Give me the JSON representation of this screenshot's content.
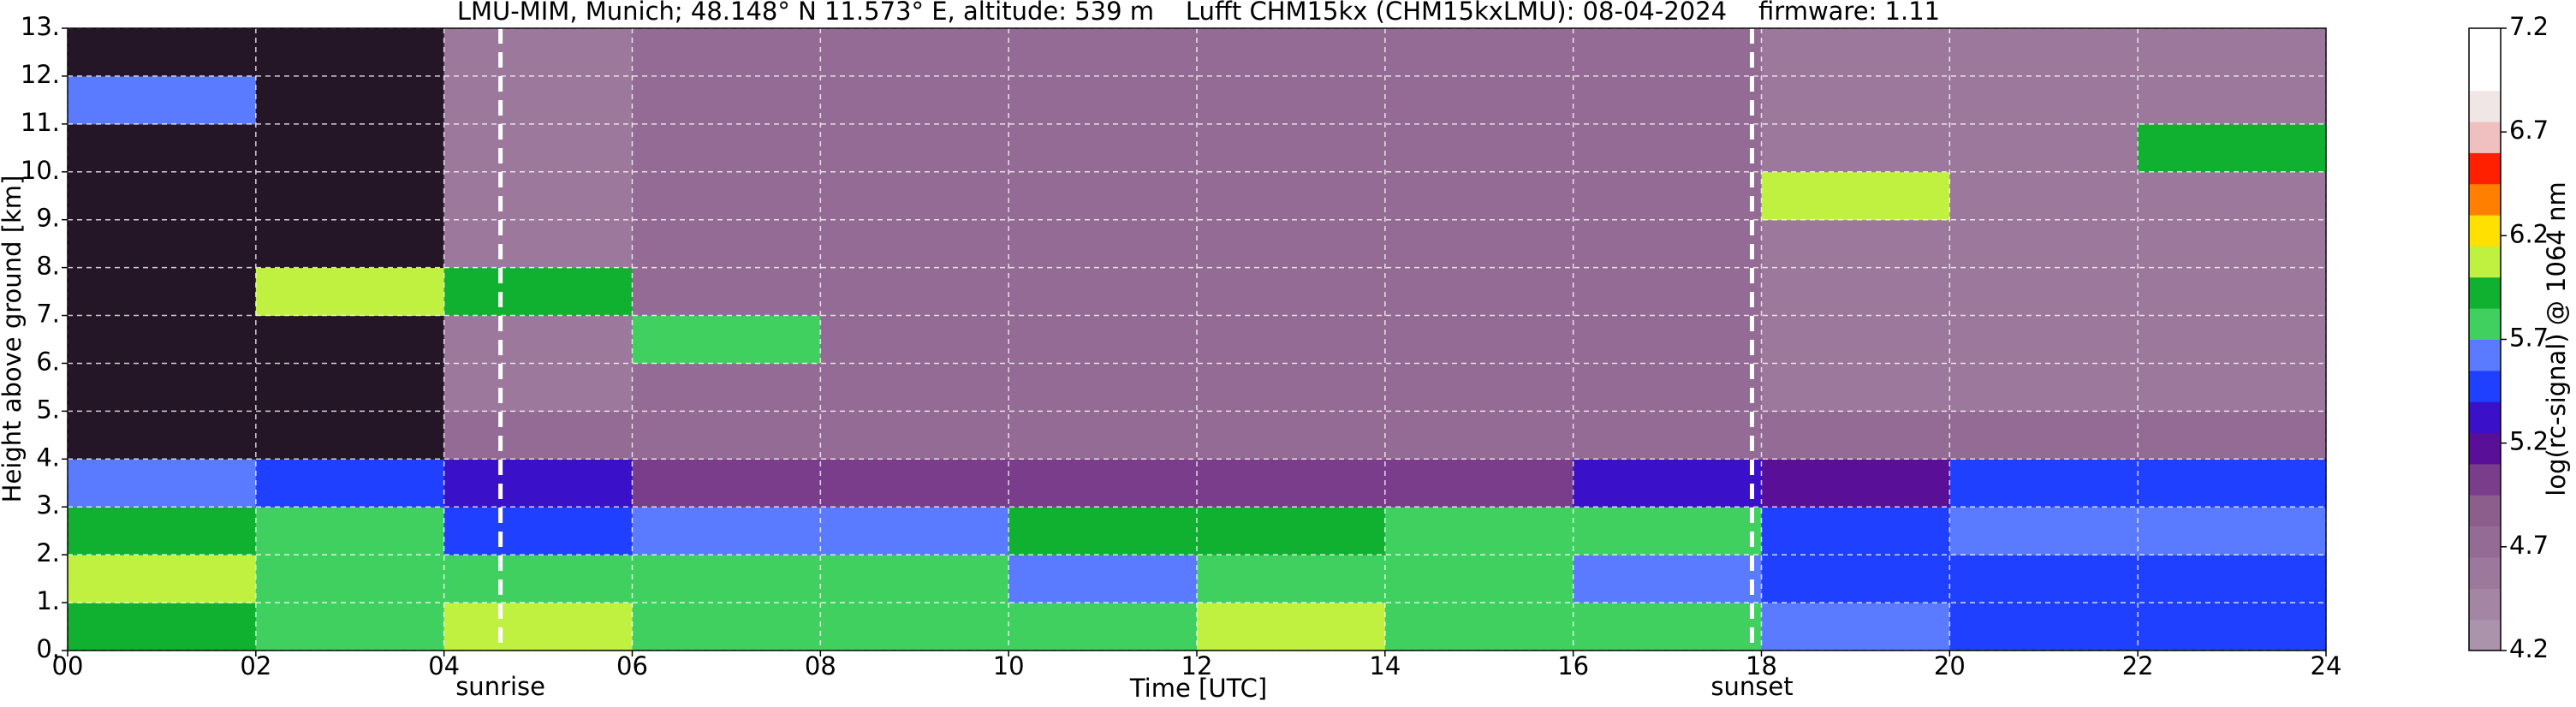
{
  "chart_data": {
    "type": "heatmap",
    "title": "LMU-MIM, Munich; 48.148° N 11.573° E, altitude: 539 m    Lufft CHM15kx (CHM15kxLMU): 08-04-2024    firmware: 1.11",
    "x_label": "Time [UTC]",
    "y_label": "Height above ground [km]",
    "xlim": [
      0,
      24
    ],
    "ylim": [
      0,
      13
    ],
    "xticks": [
      {
        "value": 0,
        "label": "00"
      },
      {
        "value": 2,
        "label": "02"
      },
      {
        "value": 4,
        "label": "04"
      },
      {
        "value": 6,
        "label": "06"
      },
      {
        "value": 8,
        "label": "08"
      },
      10,
      12,
      14,
      16,
      18,
      20,
      22,
      24
    ],
    "yticks": [
      {
        "value": 0,
        "label": "0."
      },
      {
        "value": 1,
        "label": "1."
      },
      {
        "value": 2,
        "label": "2."
      },
      {
        "value": 3,
        "label": "3."
      },
      {
        "value": 4,
        "label": "4."
      },
      {
        "value": 5,
        "label": "5."
      },
      {
        "value": 6,
        "label": "6."
      },
      {
        "value": 7,
        "label": "7."
      },
      {
        "value": 8,
        "label": "8."
      },
      {
        "value": 9,
        "label": "9."
      },
      {
        "value": 10,
        "label": "10."
      },
      {
        "value": 11,
        "label": "11."
      },
      {
        "value": 12,
        "label": "12."
      },
      {
        "value": 13,
        "label": "13."
      }
    ],
    "grid": true,
    "grid_color": "#ffffff",
    "xbins": [
      0,
      2,
      4,
      6,
      8,
      10,
      12,
      14,
      16,
      18,
      20,
      22,
      24
    ],
    "ybins": [
      0,
      1,
      2,
      3,
      4,
      5,
      6,
      7,
      8,
      9,
      10,
      11,
      12,
      13
    ],
    "values": [
      [
        5.9,
        5.8,
        6.0,
        5.8,
        5.7,
        5.7,
        6.0,
        5.8,
        5.8,
        5.6,
        5.5,
        5.5
      ],
      [
        6.0,
        5.7,
        5.8,
        5.7,
        5.7,
        5.6,
        5.8,
        5.7,
        5.6,
        5.5,
        5.5,
        5.5
      ],
      [
        5.9,
        5.7,
        5.5,
        5.6,
        5.6,
        5.9,
        5.9,
        5.8,
        5.7,
        5.5,
        5.6,
        5.6
      ],
      [
        5.6,
        5.5,
        5.3,
        5.1,
        5.0,
        5.0,
        5.0,
        5.1,
        5.3,
        5.2,
        5.4,
        5.5
      ],
      [
        4.0,
        4.0,
        4.8,
        4.8,
        4.8,
        4.8,
        4.8,
        4.8,
        4.8,
        4.7,
        4.7,
        4.7
      ],
      [
        4.0,
        4.0,
        4.6,
        4.8,
        4.8,
        4.8,
        4.8,
        4.8,
        4.8,
        4.6,
        4.6,
        4.6
      ],
      [
        4.0,
        4.0,
        4.6,
        5.8,
        4.8,
        4.8,
        4.8,
        4.8,
        4.8,
        4.6,
        4.6,
        4.6
      ],
      [
        4.0,
        6.1,
        5.9,
        4.8,
        4.8,
        4.8,
        4.8,
        4.8,
        4.8,
        4.6,
        4.6,
        4.6
      ],
      [
        4.0,
        4.0,
        4.6,
        4.8,
        4.8,
        4.8,
        4.8,
        4.8,
        4.8,
        4.6,
        4.6,
        4.6
      ],
      [
        4.0,
        4.0,
        4.6,
        4.8,
        4.8,
        4.8,
        4.8,
        4.8,
        4.8,
        6.0,
        4.6,
        4.6
      ],
      [
        4.0,
        4.0,
        4.6,
        4.8,
        4.8,
        4.8,
        4.8,
        4.8,
        4.8,
        4.6,
        4.6,
        5.9
      ],
      [
        5.6,
        4.0,
        4.6,
        4.8,
        4.8,
        4.8,
        4.8,
        4.8,
        4.8,
        4.6,
        4.6,
        4.6
      ],
      [
        4.0,
        4.0,
        4.6,
        4.8,
        4.8,
        4.8,
        4.8,
        4.8,
        4.8,
        4.6,
        4.6,
        4.6
      ]
    ],
    "under_color": "#241626",
    "events": [
      {
        "label": "sunrise",
        "x": 4.6
      },
      {
        "label": "sunset",
        "x": 17.9
      }
    ],
    "colorbar": {
      "label": "log(rc-signal) @ 1064 nm",
      "lim": [
        4.2,
        7.2
      ],
      "ticks": [
        4.2,
        4.7,
        5.2,
        5.7,
        6.2,
        6.7,
        7.2
      ],
      "colors": [
        "#ab93ab",
        "#a486a4",
        "#9c789c",
        "#946b94",
        "#8c5e8c",
        "#7a3d8c",
        "#5a0f99",
        "#3a10c8",
        "#2040ff",
        "#5a7aff",
        "#40d060",
        "#10b030",
        "#c0f040",
        "#ffe000",
        "#ff8000",
        "#ff2000",
        "#f0c0c0",
        "#f0e6e6",
        "#ffffff",
        "#ffffff"
      ]
    }
  }
}
